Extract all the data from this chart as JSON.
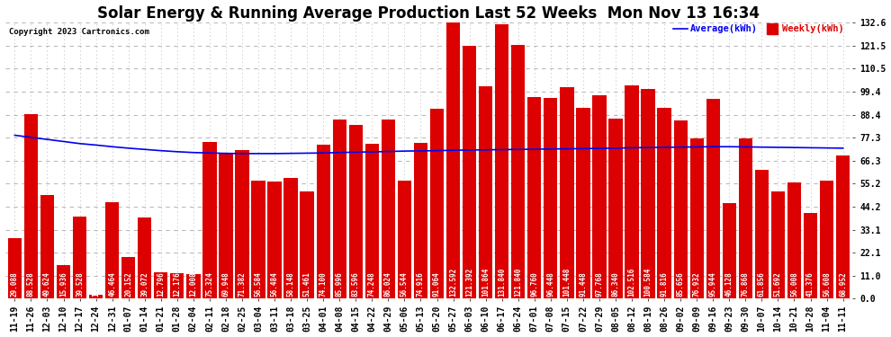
{
  "title": "Solar Energy & Running Average Production Last 52 Weeks  Mon Nov 13 16:34",
  "copyright": "Copyright 2023 Cartronics.com",
  "legend_avg": "Average(kWh)",
  "legend_weekly": "Weekly(kWh)",
  "bar_color": "#dd0000",
  "avg_line_color": "#0000ee",
  "background_color": "#ffffff",
  "plot_bg_color": "#ffffff",
  "yticks": [
    0.0,
    11.0,
    22.1,
    33.1,
    44.2,
    55.2,
    66.3,
    77.3,
    88.4,
    99.4,
    110.5,
    121.5,
    132.6
  ],
  "xlabels": [
    "11-19",
    "11-26",
    "12-03",
    "12-10",
    "12-17",
    "12-24",
    "12-31",
    "01-07",
    "01-14",
    "01-21",
    "01-28",
    "02-04",
    "02-11",
    "02-18",
    "02-25",
    "03-04",
    "03-11",
    "03-18",
    "03-25",
    "04-01",
    "04-08",
    "04-15",
    "04-22",
    "04-29",
    "05-06",
    "05-13",
    "05-20",
    "05-27",
    "06-03",
    "06-10",
    "06-17",
    "06-24",
    "07-01",
    "07-08",
    "07-15",
    "07-22",
    "07-29",
    "08-05",
    "08-12",
    "08-19",
    "08-26",
    "09-02",
    "09-09",
    "09-16",
    "09-23",
    "09-30",
    "10-07",
    "10-14",
    "10-21",
    "10-28",
    "11-04",
    "11-11"
  ],
  "weekly_values": [
    29.088,
    88.528,
    49.624,
    15.936,
    39.528,
    1.928,
    46.464,
    20.152,
    39.072,
    12.796,
    12.176,
    12.008,
    75.324,
    69.948,
    71.382,
    56.584,
    56.484,
    58.148,
    51.461,
    74.1,
    85.996,
    83.596,
    74.248,
    86.024,
    56.544,
    74.916,
    91.064,
    132.592,
    121.392,
    101.864,
    131.84,
    121.84,
    96.76,
    96.448,
    101.448,
    91.448,
    97.768,
    86.34,
    102.516,
    100.584,
    91.816,
    85.656,
    76.932,
    95.944,
    46.128,
    76.868,
    61.856,
    51.692,
    56.008,
    41.376,
    56.608,
    68.952
  ],
  "avg_values": [
    78.5,
    77.5,
    76.5,
    75.5,
    74.5,
    73.8,
    73.0,
    72.3,
    71.7,
    71.1,
    70.6,
    70.2,
    70.0,
    69.8,
    69.7,
    69.7,
    69.7,
    69.8,
    69.9,
    70.0,
    70.2,
    70.4,
    70.5,
    70.7,
    70.9,
    71.0,
    71.1,
    71.3,
    71.4,
    71.5,
    71.6,
    71.7,
    71.8,
    71.9,
    72.0,
    72.1,
    72.2,
    72.3,
    72.5,
    72.6,
    72.7,
    72.8,
    72.9,
    73.0,
    73.0,
    72.9,
    72.8,
    72.7,
    72.6,
    72.5,
    72.4,
    72.3
  ],
  "ylim": [
    0.0,
    132.6
  ],
  "title_fontsize": 12,
  "tick_fontsize": 7,
  "label_fontsize": 5.5,
  "grid_color": "#bbbbbb"
}
